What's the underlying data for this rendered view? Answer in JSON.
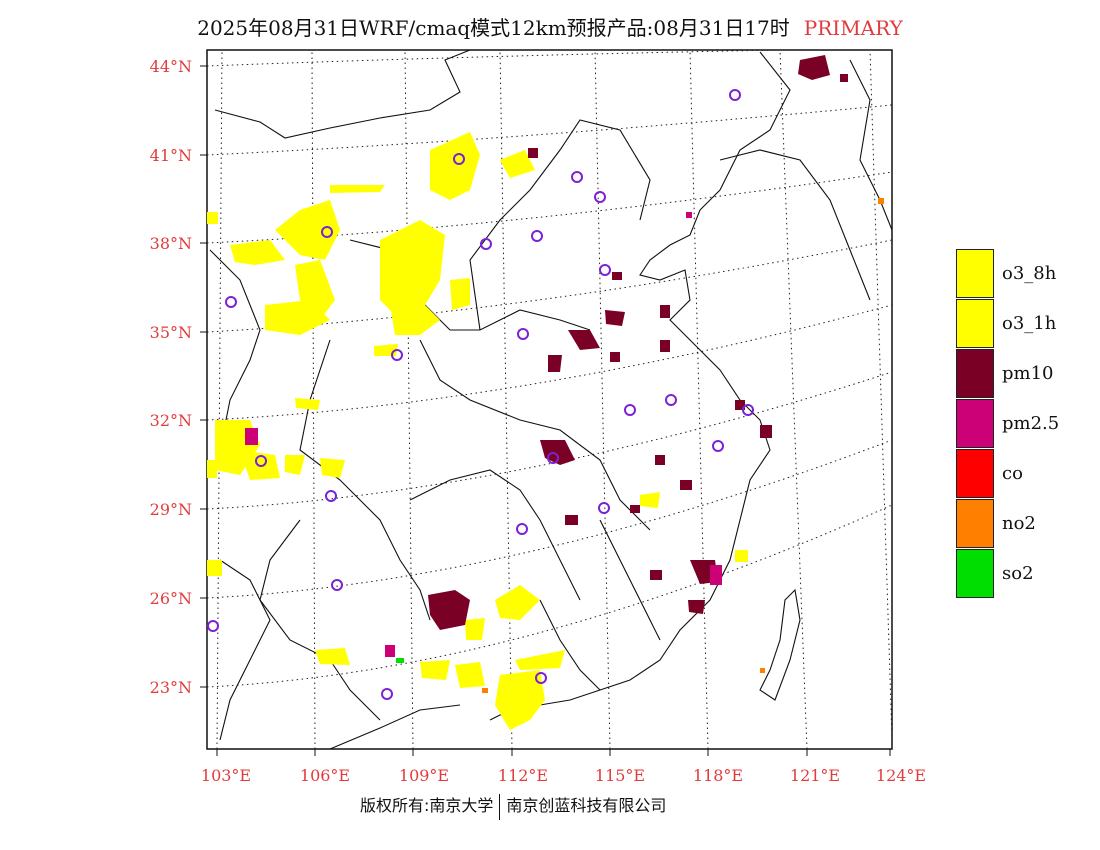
{
  "header": {
    "title": "2025年08月31日WRF/cmaq模式12km预报产品:08月31日17时",
    "primary_label": "PRIMARY"
  },
  "map": {
    "lat_labels": [
      "44°N",
      "41°N",
      "38°N",
      "35°N",
      "32°N",
      "29°N",
      "26°N",
      "23°N"
    ],
    "lon_labels": [
      "103°E",
      "106°E",
      "109°E",
      "112°E",
      "115°E",
      "118°E",
      "121°E",
      "124°E"
    ],
    "tick_color": "#e23b3b",
    "station_marker_color": "#7a22d6"
  },
  "legend": {
    "items": [
      {
        "label": "o3_8h",
        "color": "#ffff00"
      },
      {
        "label": "o3_1h",
        "color": "#ffff00"
      },
      {
        "label": "pm10",
        "color": "#7a0026"
      },
      {
        "label": "pm2.5",
        "color": "#cc0077"
      },
      {
        "label": "co",
        "color": "#ff0000"
      },
      {
        "label": "no2",
        "color": "#ff7f00"
      },
      {
        "label": "so2",
        "color": "#00dd00"
      }
    ]
  },
  "footer": {
    "copyright_left": "版权所有:南京大学",
    "copyright_right": "南京创蓝科技有限公司"
  }
}
